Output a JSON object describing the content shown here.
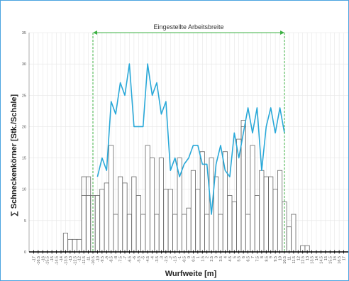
{
  "chart_data": {
    "type": "bar",
    "ylabel": "∑ Schneckenkörner [Stk./Schale]",
    "xlabel": "Wurfweite [m]",
    "annotation": "Eingestellte Arbeitsbreite",
    "ylim": [
      0,
      35
    ],
    "yticks": [
      0,
      5,
      10,
      15,
      20,
      25,
      30,
      35
    ],
    "xlim": [
      -17.5,
      17.5
    ],
    "working_width": [
      -10.5,
      10.5
    ],
    "grid": true,
    "colors": {
      "bars": "#666666",
      "line": "#29a8d8",
      "working_width": "#3cb043",
      "grid": "#e6e6e6",
      "axis": "#000000"
    },
    "x_tick_labels": [
      "-17",
      "-16.5",
      "-16",
      "-15.5",
      "-15",
      "-14.5",
      "-14",
      "-13.5",
      "-13",
      "-12.5",
      "-12",
      "-11.5",
      "-11",
      "-10.5",
      "-10",
      "-9.5",
      "-9",
      "-8.5",
      "-8",
      "-7.5",
      "-7",
      "-6.5",
      "-6",
      "-5.5",
      "-5",
      "-4.5",
      "-4",
      "-3.5",
      "-3",
      "-2.5",
      "-2",
      "-1.5",
      "-1",
      "-0.5",
      "0",
      "0.5",
      "1",
      "1.5",
      "2",
      "2.5",
      "3",
      "3.5",
      "4",
      "4.5",
      "5",
      "5.5",
      "6",
      "6.5",
      "7",
      "7.5",
      "8",
      "8.5",
      "9",
      "9.5",
      "10",
      "10.5",
      "11",
      "11.5",
      "12",
      "12.5",
      "13",
      "13.5",
      "14",
      "14.5",
      "15",
      "15.5",
      "16",
      "16.5",
      "17"
    ],
    "x_tick_values": [
      -17,
      -16.5,
      -16,
      -15.5,
      -15,
      -14.5,
      -14,
      -13.5,
      -13,
      -12.5,
      -12,
      -11.5,
      -11,
      -10.5,
      -10,
      -9.5,
      -9,
      -8.5,
      -8,
      -7.5,
      -7,
      -6.5,
      -6,
      -5.5,
      -5,
      -4.5,
      -4,
      -3.5,
      -3,
      -2.5,
      -2,
      -1.5,
      -1,
      -0.5,
      0,
      0.5,
      1,
      1.5,
      2,
      2.5,
      3,
      3.5,
      4,
      4.5,
      5,
      5.5,
      6,
      6.5,
      7,
      7.5,
      8,
      8.5,
      9,
      9.5,
      10,
      10.5,
      11,
      11.5,
      12,
      12.5,
      13,
      13.5,
      14,
      14.5,
      15,
      15.5,
      16,
      16.5,
      17
    ],
    "bars": {
      "x": [
        -13.5,
        -13,
        -12.5,
        -12,
        -11.5,
        -11,
        -10.5,
        -10,
        -9.5,
        -9,
        -8.5,
        -8,
        -7.5,
        -7,
        -6.5,
        -6,
        -5.5,
        -5,
        -4.5,
        -4,
        -3.5,
        -3,
        -2.5,
        -2,
        -1.5,
        -1,
        -0.5,
        0,
        0.5,
        1,
        1.5,
        2,
        2.5,
        3,
        3.5,
        4,
        4.5,
        5,
        5.5,
        6,
        6.5,
        7,
        7.5,
        8,
        8.5,
        9,
        9.5,
        10,
        10.5,
        11,
        11.5,
        12,
        12.5,
        13,
        13.5
      ],
      "values": [
        3,
        2,
        2,
        2,
        9,
        9,
        9,
        9,
        10,
        11,
        17,
        6,
        12,
        11,
        6,
        12,
        9,
        6,
        17,
        15,
        6,
        15,
        10,
        10,
        6,
        15,
        6,
        7,
        13,
        10,
        16,
        6,
        15,
        12,
        6,
        16,
        9,
        8,
        18,
        21,
        6,
        17,
        9,
        13,
        12,
        12,
        10,
        13,
        8,
        4,
        6,
        0,
        1,
        1,
        0
      ],
      "overlay_values": [
        0,
        0,
        0,
        0,
        12,
        12,
        0,
        0,
        0,
        0,
        0,
        0,
        0,
        0,
        0,
        0,
        0,
        0,
        0,
        0,
        0,
        0,
        0,
        0,
        0,
        0,
        0,
        0,
        0,
        0,
        0,
        0,
        0,
        0,
        0,
        0,
        0,
        0,
        0,
        20,
        0,
        0,
        0,
        0,
        0,
        0,
        0,
        0,
        0,
        0,
        0,
        0,
        0,
        0,
        0
      ]
    },
    "line": {
      "x": [
        -10,
        -9.5,
        -9,
        -8.5,
        -8,
        -7.5,
        -7,
        -6.5,
        -6,
        -5.5,
        -5,
        -4.5,
        -4,
        -3.5,
        -3,
        -2.5,
        -2,
        -1.5,
        -1,
        -0.5,
        0,
        0.5,
        1,
        1.5,
        2,
        2.5,
        3,
        3.5,
        4,
        4.5,
        5,
        5.5,
        6,
        6.5,
        7,
        7.5,
        8,
        8.5,
        9,
        9.5,
        10,
        10.5
      ],
      "values": [
        12,
        15,
        13,
        24,
        22,
        27,
        25,
        30,
        20,
        20,
        20,
        30,
        25,
        27,
        22,
        24,
        13,
        15,
        12,
        14,
        15,
        17,
        17,
        14,
        14,
        6,
        14,
        17,
        13,
        12,
        19,
        15,
        19,
        23,
        19,
        23,
        13,
        20,
        23,
        19,
        23,
        19
      ]
    }
  }
}
